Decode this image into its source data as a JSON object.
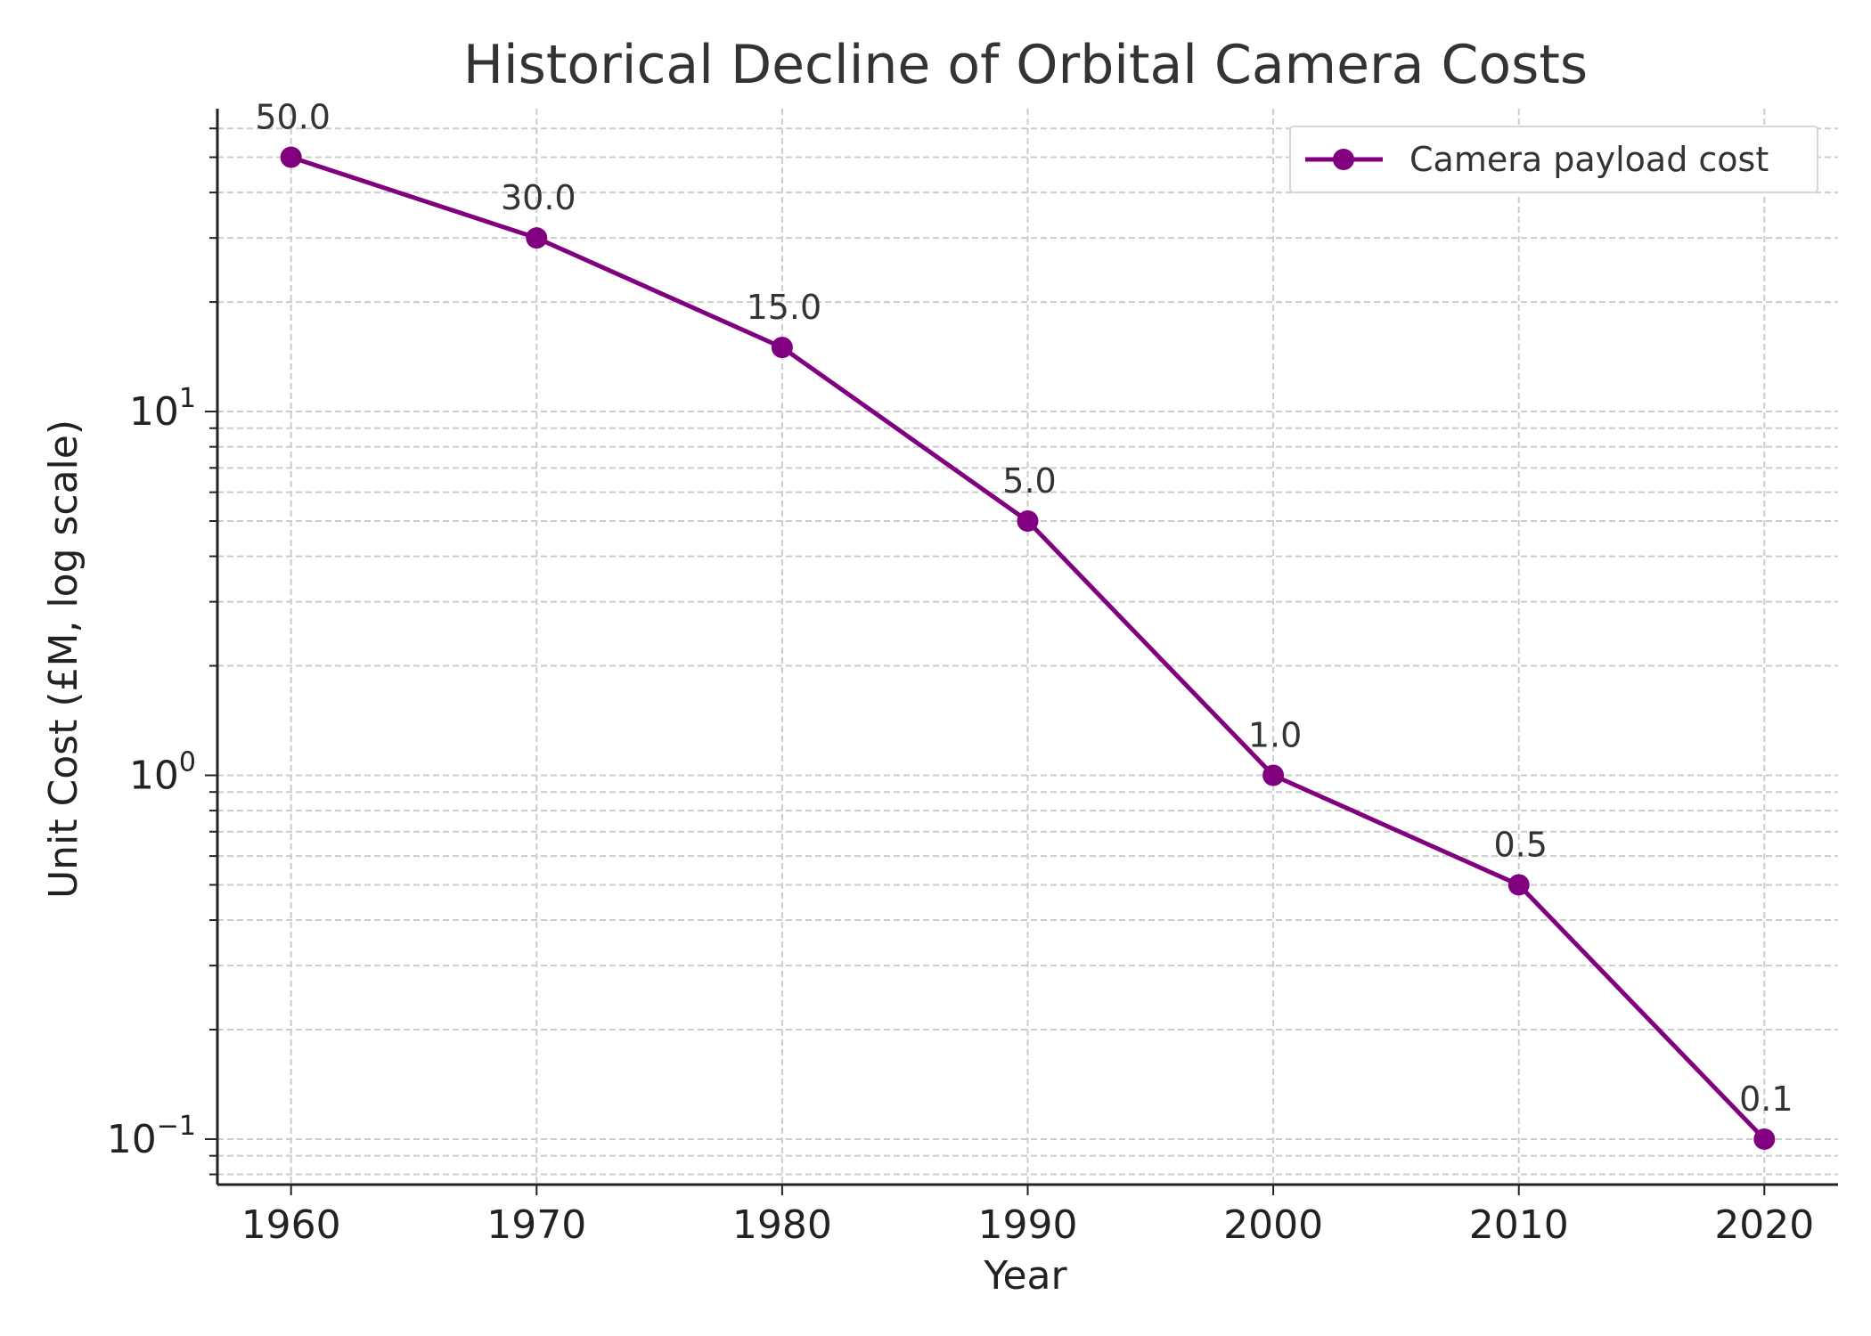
{
  "chart_data": {
    "type": "line",
    "title": "Historical Decline of Orbital Camera Costs",
    "xlabel": "Year",
    "ylabel": "Unit Cost (£M, log scale)",
    "x": [
      1960,
      1970,
      1980,
      1990,
      2000,
      2010,
      2020
    ],
    "x_ticks": [
      "1960",
      "1970",
      "1980",
      "1990",
      "2000",
      "2010",
      "2020"
    ],
    "y_scale": "log",
    "ylim": [
      0.075,
      68
    ],
    "xlim": [
      1957,
      2023
    ],
    "y_ticks": [
      {
        "value": 0.1,
        "base": "10",
        "exp": "−1"
      },
      {
        "value": 1,
        "base": "10",
        "exp": "0"
      },
      {
        "value": 10,
        "base": "10",
        "exp": "1"
      }
    ],
    "grid": true,
    "legend_position": "top-right",
    "series": [
      {
        "name": "Camera payload cost",
        "color": "#800080",
        "marker": "circle",
        "values": [
          50.0,
          30.0,
          15.0,
          5.0,
          1.0,
          0.5,
          0.1
        ],
        "labels": [
          "50.0",
          "30.0",
          "15.0",
          "5.0",
          "1.0",
          "0.5",
          "0.1"
        ]
      }
    ]
  }
}
